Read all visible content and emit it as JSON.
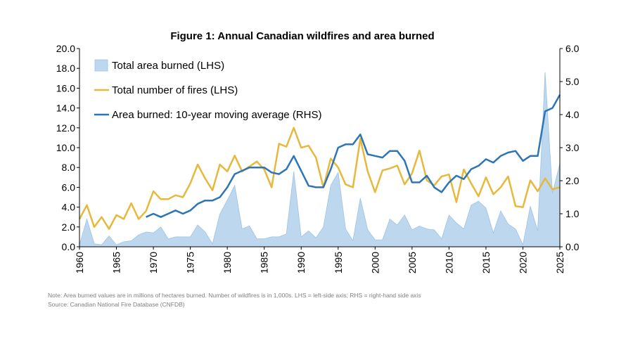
{
  "chart_data": {
    "type": "area",
    "title": "Figure 1: Annual Canadian wildfires and area burned",
    "x": [
      1960,
      1961,
      1962,
      1963,
      1964,
      1965,
      1966,
      1967,
      1968,
      1969,
      1970,
      1971,
      1972,
      1973,
      1974,
      1975,
      1976,
      1977,
      1978,
      1979,
      1980,
      1981,
      1982,
      1983,
      1984,
      1985,
      1986,
      1987,
      1988,
      1989,
      1990,
      1991,
      1992,
      1993,
      1994,
      1995,
      1996,
      1997,
      1998,
      1999,
      2000,
      2001,
      2002,
      2003,
      2004,
      2005,
      2006,
      2007,
      2008,
      2009,
      2010,
      2011,
      2012,
      2013,
      2014,
      2015,
      2016,
      2017,
      2018,
      2019,
      2020,
      2021,
      2022,
      2023,
      2024,
      2025
    ],
    "xticks": [
      "1960",
      "1965",
      "1970",
      "1975",
      "1980",
      "1985",
      "1990",
      "1995",
      "2000",
      "2005",
      "2010",
      "2015",
      "2020",
      "2025"
    ],
    "left_axis": {
      "ylim": [
        0,
        20
      ],
      "ticks": [
        "0.0",
        "2.0",
        "4.0",
        "6.0",
        "8.0",
        "10.0",
        "12.0",
        "14.0",
        "16.0",
        "18.0",
        "20.0"
      ]
    },
    "right_axis": {
      "ylim": [
        0,
        6
      ],
      "ticks": [
        "0.0",
        "1.0",
        "2.0",
        "3.0",
        "4.0",
        "5.0",
        "6.0"
      ]
    },
    "series": [
      {
        "name": "Total area burned (LHS)",
        "kind": "area",
        "axis": "left",
        "color": "#bdd7ee",
        "edge_color": "#9dc3e6",
        "values": [
          0.2,
          2.8,
          0.3,
          0.2,
          1.1,
          0.2,
          0.5,
          0.6,
          1.2,
          1.5,
          1.4,
          2.0,
          0.8,
          1.0,
          1.0,
          1.0,
          2.2,
          1.5,
          0.3,
          3.3,
          4.7,
          6.2,
          1.8,
          2.1,
          0.8,
          0.8,
          1.0,
          1.0,
          1.3,
          7.6,
          1.0,
          1.6,
          0.9,
          2.0,
          6.2,
          7.5,
          1.8,
          0.6,
          4.9,
          1.7,
          0.7,
          0.7,
          2.8,
          2.2,
          3.2,
          1.7,
          2.1,
          1.8,
          1.7,
          0.8,
          3.2,
          2.4,
          1.8,
          4.2,
          4.6,
          3.9,
          1.4,
          3.6,
          2.3,
          1.8,
          0.2,
          4.1,
          1.6,
          17.6,
          5.4,
          8.4
        ]
      },
      {
        "name": "Total number of fires (LHS)",
        "kind": "line",
        "axis": "left",
        "color": "#e6b83c",
        "values": [
          2.8,
          4.2,
          2.0,
          3.0,
          1.8,
          3.2,
          2.8,
          4.4,
          2.8,
          3.6,
          5.6,
          4.8,
          4.8,
          5.2,
          5.0,
          6.4,
          8.3,
          6.9,
          5.7,
          8.3,
          7.6,
          9.2,
          7.6,
          8.1,
          8.6,
          7.8,
          6.0,
          10.4,
          10.1,
          12.0,
          10.0,
          10.2,
          9.0,
          6.0,
          8.9,
          8.0,
          6.3,
          6.0,
          10.9,
          7.6,
          5.5,
          7.7,
          7.9,
          8.2,
          6.3,
          7.4,
          9.7,
          6.7,
          6.2,
          7.1,
          7.3,
          4.5,
          7.8,
          6.4,
          5.1,
          7.0,
          5.3,
          6.0,
          7.1,
          4.1,
          4.0,
          6.7,
          5.6,
          6.9,
          5.8,
          6.0
        ]
      },
      {
        "name": "Area burned: 10-year moving average (RHS)",
        "kind": "line",
        "axis": "right",
        "color": "#2e75b6",
        "values": [
          null,
          null,
          null,
          null,
          null,
          null,
          null,
          null,
          null,
          0.9,
          1.0,
          0.9,
          1.0,
          1.1,
          1.0,
          1.1,
          1.3,
          1.4,
          1.4,
          1.5,
          1.8,
          2.2,
          2.3,
          2.4,
          2.4,
          2.4,
          2.25,
          2.2,
          2.35,
          2.75,
          2.3,
          1.85,
          1.8,
          1.8,
          2.35,
          3.0,
          3.1,
          3.1,
          3.4,
          2.8,
          2.75,
          2.7,
          2.9,
          2.9,
          2.6,
          1.95,
          1.95,
          2.15,
          1.8,
          1.65,
          1.95,
          2.15,
          2.05,
          2.35,
          2.45,
          2.65,
          2.55,
          2.75,
          2.85,
          2.9,
          2.6,
          2.75,
          2.75,
          4.1,
          4.2,
          4.6
        ]
      }
    ],
    "legend": "top-left"
  },
  "footer": {
    "note": "Note: Area burned values are in millions of hectares burned. Number of wildfires is in 1,000s. LHS = left-side axis; RHS = right-hand side axis",
    "source": "Source: Canadian National Fire Database (CNFDB)"
  }
}
